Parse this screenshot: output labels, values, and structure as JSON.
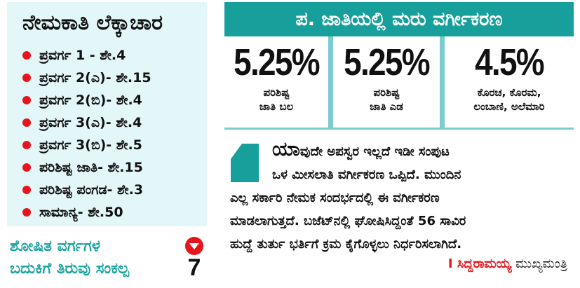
{
  "left_panel": {
    "title": "ನೇಮಕಾತಿ ಲೆಕ್ಕಾಚಾರ",
    "items": [
      "ಪ್ರವರ್ಗ 1 - ಶೇ.4",
      "ಪ್ರವರ್ಗ 2(ಎ)- ಶೇ.15",
      "ಪ್ರವರ್ಗ 2(ಬಿ)- ಶೇ.4",
      "ಪ್ರವರ್ಗ 3(ಎ)- ಶೇ.4",
      "ಪ್ರವರ್ಗ 3(ಬಿ)- ಶೇ.5",
      "ಪರಿಶಿಷ್ಟ ಜಾತಿ- ಶೇ.15",
      "ಪರಿಶಿಷ್ಟ ಪಂಗಡ- ಶೇ.3",
      "ಸಾಮಾನ್ಯ- ಶೇ.50"
    ],
    "tagline_line1": "ಶೋಷಿತ ವರ್ಗಗಳ",
    "tagline_line2": "ಬದುಕಿಗೆ ತಿರುವು ಸಂಕಲ್ಪ",
    "page_ref": "7",
    "page_ref_icon": "down-triangle-icon"
  },
  "header": {
    "title": "ಪ. ಜಾತಿಯಲ್ಲಿ ಮರು ವರ್ಗೀಕರಣ"
  },
  "stats": [
    {
      "value": "5.25%",
      "line1": "ಪರಿಶಿಷ್ಟ",
      "line2": "ಜಾತಿ ಬಲ"
    },
    {
      "value": "5.25%",
      "line1": "ಪರಿಶಿಷ್ಟ",
      "line2": "ಜಾತಿ ಎಡ"
    },
    {
      "value": "4.5%",
      "line1": "ಕೊರಚ, ಕೊರಮ,",
      "line2": "ಲಂಬಾಣಿ, ಅಲೆಮಾರಿ"
    }
  ],
  "quote": {
    "drop_cap": "ಯಾ",
    "lines": [
      "ವುದೇ ಅಪಸ್ವರ ಇಲ್ಲದೆ ಇಡೀ ಸಂಪುಟ",
      "ಒಳ ಮೀಸಲಾತಿ ವರ್ಗೀಕರಣ ಒಪ್ಪಿದೆ. ಮುಂದಿನ",
      "ಎಲ್ಲ ಸರ್ಕಾರಿ ನೇಮಕ ಸಂದರ್ಭದಲ್ಲಿ ಈ ವರ್ಗೀಕರಣ",
      "ಮಾಡಲಾಗುತ್ತದೆ. ಬಜೆಟ್‌ನಲ್ಲಿ ಘೋಷಿಸಿದ್ದಂತೆ 56 ಸಾವಿರ",
      "ಹುದ್ದೆ ತುರ್ತು ಭರ್ತಿಗೆ ಕ್ರಮ ಕೈಗೊಳ್ಳಲು ನಿರ್ಧರಿಸಲಾಗಿದೆ."
    ],
    "speaker": "I ಸಿದ್ದರಾಮಯ್ಯ",
    "role": "ಮುಖ್ಯಮಂತ್ರಿ"
  },
  "colors": {
    "teal": "#17a09b",
    "light_teal": "#7ccbd0",
    "panel_bg": "#e3f6f8",
    "red": "#e8141b"
  }
}
